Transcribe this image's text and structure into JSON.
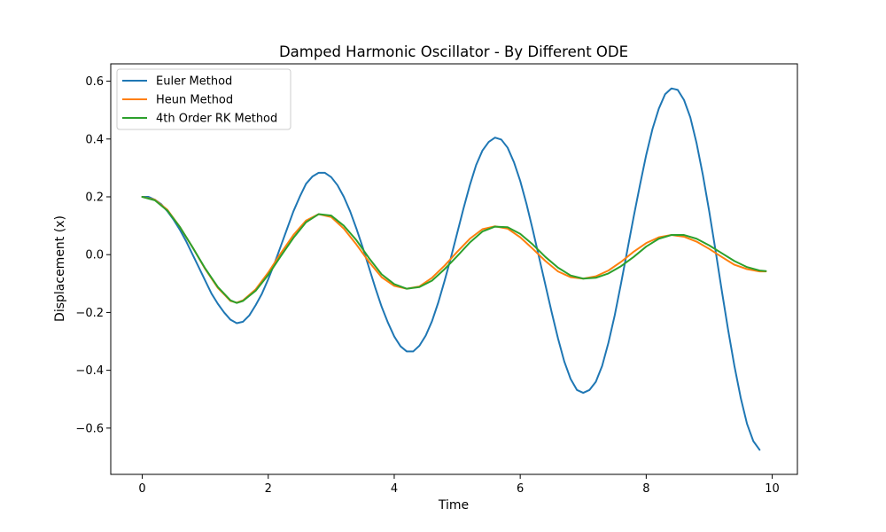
{
  "chart_data": {
    "type": "line",
    "title": "Damped Harmonic Oscillator - By Different ODE",
    "xlabel": "Time",
    "ylabel": "Displacement (x)",
    "xlim": [
      -0.5,
      10.4
    ],
    "ylim": [
      -0.76,
      0.66
    ],
    "xticks": [
      0,
      2,
      4,
      6,
      8,
      10
    ],
    "xtick_labels": [
      "0",
      "2",
      "4",
      "6",
      "8",
      "10"
    ],
    "yticks": [
      -0.6,
      -0.4,
      -0.2,
      0.0,
      0.2,
      0.4,
      0.6
    ],
    "ytick_labels": [
      "−0.6",
      "−0.4",
      "−0.2",
      "0.0",
      "0.2",
      "0.4",
      "0.6"
    ],
    "grid": false,
    "legend_position": "upper-left",
    "x": [
      0.0,
      0.5,
      1.0,
      1.5,
      2.0,
      2.5,
      3.0,
      3.5,
      4.0,
      4.5,
      5.0,
      5.5,
      6.0,
      6.5,
      7.0,
      7.5,
      8.0,
      8.5,
      9.0,
      9.5,
      9.9
    ],
    "series": [
      {
        "name": "Euler Method",
        "color": "#1f77b4",
        "points": [
          [
            0.0,
            0.2
          ],
          [
            0.1,
            0.2
          ],
          [
            0.2,
            0.19
          ],
          [
            0.3,
            0.175
          ],
          [
            0.4,
            0.15
          ],
          [
            0.5,
            0.12
          ],
          [
            0.6,
            0.085
          ],
          [
            0.7,
            0.045
          ],
          [
            0.8,
            0.0
          ],
          [
            0.9,
            -0.045
          ],
          [
            1.0,
            -0.09
          ],
          [
            1.1,
            -0.135
          ],
          [
            1.2,
            -0.17
          ],
          [
            1.3,
            -0.2
          ],
          [
            1.4,
            -0.225
          ],
          [
            1.5,
            -0.237
          ],
          [
            1.6,
            -0.232
          ],
          [
            1.7,
            -0.21
          ],
          [
            1.8,
            -0.175
          ],
          [
            1.9,
            -0.135
          ],
          [
            2.0,
            -0.085
          ],
          [
            2.1,
            -0.03
          ],
          [
            2.2,
            0.03
          ],
          [
            2.3,
            0.09
          ],
          [
            2.4,
            0.15
          ],
          [
            2.5,
            0.2
          ],
          [
            2.6,
            0.245
          ],
          [
            2.7,
            0.27
          ],
          [
            2.8,
            0.283
          ],
          [
            2.9,
            0.283
          ],
          [
            3.0,
            0.268
          ],
          [
            3.1,
            0.24
          ],
          [
            3.2,
            0.2
          ],
          [
            3.3,
            0.15
          ],
          [
            3.4,
            0.09
          ],
          [
            3.5,
            0.025
          ],
          [
            3.6,
            -0.045
          ],
          [
            3.7,
            -0.115
          ],
          [
            3.8,
            -0.18
          ],
          [
            3.9,
            -0.235
          ],
          [
            4.0,
            -0.283
          ],
          [
            4.1,
            -0.317
          ],
          [
            4.2,
            -0.335
          ],
          [
            4.3,
            -0.335
          ],
          [
            4.4,
            -0.315
          ],
          [
            4.5,
            -0.28
          ],
          [
            4.6,
            -0.23
          ],
          [
            4.7,
            -0.165
          ],
          [
            4.8,
            -0.09
          ],
          [
            4.9,
            -0.01
          ],
          [
            5.0,
            0.075
          ],
          [
            5.1,
            0.16
          ],
          [
            5.2,
            0.24
          ],
          [
            5.3,
            0.31
          ],
          [
            5.4,
            0.36
          ],
          [
            5.5,
            0.39
          ],
          [
            5.6,
            0.405
          ],
          [
            5.7,
            0.398
          ],
          [
            5.8,
            0.37
          ],
          [
            5.9,
            0.32
          ],
          [
            6.0,
            0.255
          ],
          [
            6.1,
            0.175
          ],
          [
            6.2,
            0.085
          ],
          [
            6.3,
            -0.01
          ],
          [
            6.4,
            -0.105
          ],
          [
            6.5,
            -0.2
          ],
          [
            6.6,
            -0.29
          ],
          [
            6.7,
            -0.37
          ],
          [
            6.8,
            -0.43
          ],
          [
            6.9,
            -0.468
          ],
          [
            7.0,
            -0.478
          ],
          [
            7.1,
            -0.468
          ],
          [
            7.2,
            -0.44
          ],
          [
            7.3,
            -0.385
          ],
          [
            7.4,
            -0.305
          ],
          [
            7.5,
            -0.21
          ],
          [
            7.6,
            -0.1
          ],
          [
            7.7,
            0.015
          ],
          [
            7.8,
            0.13
          ],
          [
            7.9,
            0.24
          ],
          [
            8.0,
            0.345
          ],
          [
            8.1,
            0.435
          ],
          [
            8.2,
            0.505
          ],
          [
            8.3,
            0.555
          ],
          [
            8.4,
            0.575
          ],
          [
            8.5,
            0.57
          ],
          [
            8.6,
            0.535
          ],
          [
            8.7,
            0.475
          ],
          [
            8.8,
            0.385
          ],
          [
            8.9,
            0.275
          ],
          [
            9.0,
            0.15
          ],
          [
            9.1,
            0.015
          ],
          [
            9.2,
            -0.125
          ],
          [
            9.3,
            -0.26
          ],
          [
            9.4,
            -0.385
          ],
          [
            9.5,
            -0.495
          ],
          [
            9.6,
            -0.585
          ],
          [
            9.7,
            -0.645
          ],
          [
            9.8,
            -0.675
          ]
        ]
      },
      {
        "name": "Heun Method",
        "color": "#ff7f0e",
        "points": [
          [
            0.0,
            0.2
          ],
          [
            0.2,
            0.19
          ],
          [
            0.4,
            0.155
          ],
          [
            0.6,
            0.095
          ],
          [
            0.8,
            0.025
          ],
          [
            1.0,
            -0.05
          ],
          [
            1.2,
            -0.115
          ],
          [
            1.4,
            -0.16
          ],
          [
            1.5,
            -0.166
          ],
          [
            1.6,
            -0.158
          ],
          [
            1.8,
            -0.12
          ],
          [
            2.0,
            -0.062
          ],
          [
            2.2,
            0.005
          ],
          [
            2.4,
            0.068
          ],
          [
            2.6,
            0.118
          ],
          [
            2.8,
            0.14
          ],
          [
            3.0,
            0.13
          ],
          [
            3.2,
            0.09
          ],
          [
            3.4,
            0.035
          ],
          [
            3.6,
            -0.025
          ],
          [
            3.8,
            -0.078
          ],
          [
            4.0,
            -0.108
          ],
          [
            4.2,
            -0.118
          ],
          [
            4.4,
            -0.11
          ],
          [
            4.6,
            -0.08
          ],
          [
            4.8,
            -0.038
          ],
          [
            5.0,
            0.01
          ],
          [
            5.2,
            0.055
          ],
          [
            5.4,
            0.088
          ],
          [
            5.6,
            0.098
          ],
          [
            5.8,
            0.09
          ],
          [
            6.0,
            0.06
          ],
          [
            6.2,
            0.02
          ],
          [
            6.4,
            -0.022
          ],
          [
            6.6,
            -0.058
          ],
          [
            6.8,
            -0.078
          ],
          [
            7.0,
            -0.083
          ],
          [
            7.2,
            -0.075
          ],
          [
            7.4,
            -0.055
          ],
          [
            7.6,
            -0.025
          ],
          [
            7.8,
            0.01
          ],
          [
            8.0,
            0.04
          ],
          [
            8.2,
            0.06
          ],
          [
            8.4,
            0.068
          ],
          [
            8.6,
            0.062
          ],
          [
            8.8,
            0.045
          ],
          [
            9.0,
            0.02
          ],
          [
            9.2,
            -0.008
          ],
          [
            9.4,
            -0.035
          ],
          [
            9.6,
            -0.05
          ],
          [
            9.8,
            -0.058
          ],
          [
            9.9,
            -0.058
          ]
        ]
      },
      {
        "name": "4th Order RK Method",
        "color": "#2ca02c",
        "points": [
          [
            0.0,
            0.2
          ],
          [
            0.2,
            0.188
          ],
          [
            0.4,
            0.152
          ],
          [
            0.6,
            0.095
          ],
          [
            0.8,
            0.025
          ],
          [
            1.0,
            -0.048
          ],
          [
            1.2,
            -0.112
          ],
          [
            1.4,
            -0.158
          ],
          [
            1.5,
            -0.167
          ],
          [
            1.6,
            -0.16
          ],
          [
            1.8,
            -0.125
          ],
          [
            2.0,
            -0.07
          ],
          [
            2.2,
            -0.005
          ],
          [
            2.4,
            0.058
          ],
          [
            2.6,
            0.112
          ],
          [
            2.8,
            0.14
          ],
          [
            3.0,
            0.135
          ],
          [
            3.2,
            0.1
          ],
          [
            3.4,
            0.05
          ],
          [
            3.6,
            -0.012
          ],
          [
            3.8,
            -0.068
          ],
          [
            4.0,
            -0.102
          ],
          [
            4.2,
            -0.118
          ],
          [
            4.4,
            -0.112
          ],
          [
            4.6,
            -0.09
          ],
          [
            4.8,
            -0.05
          ],
          [
            5.0,
            -0.005
          ],
          [
            5.2,
            0.042
          ],
          [
            5.4,
            0.08
          ],
          [
            5.6,
            0.097
          ],
          [
            5.8,
            0.095
          ],
          [
            6.0,
            0.072
          ],
          [
            6.2,
            0.035
          ],
          [
            6.4,
            -0.008
          ],
          [
            6.6,
            -0.045
          ],
          [
            6.8,
            -0.072
          ],
          [
            7.0,
            -0.083
          ],
          [
            7.2,
            -0.08
          ],
          [
            7.4,
            -0.065
          ],
          [
            7.6,
            -0.04
          ],
          [
            7.8,
            -0.008
          ],
          [
            8.0,
            0.028
          ],
          [
            8.2,
            0.055
          ],
          [
            8.4,
            0.068
          ],
          [
            8.6,
            0.068
          ],
          [
            8.8,
            0.055
          ],
          [
            9.0,
            0.032
          ],
          [
            9.2,
            0.005
          ],
          [
            9.4,
            -0.022
          ],
          [
            9.6,
            -0.043
          ],
          [
            9.8,
            -0.055
          ],
          [
            9.9,
            -0.057
          ]
        ]
      }
    ]
  }
}
